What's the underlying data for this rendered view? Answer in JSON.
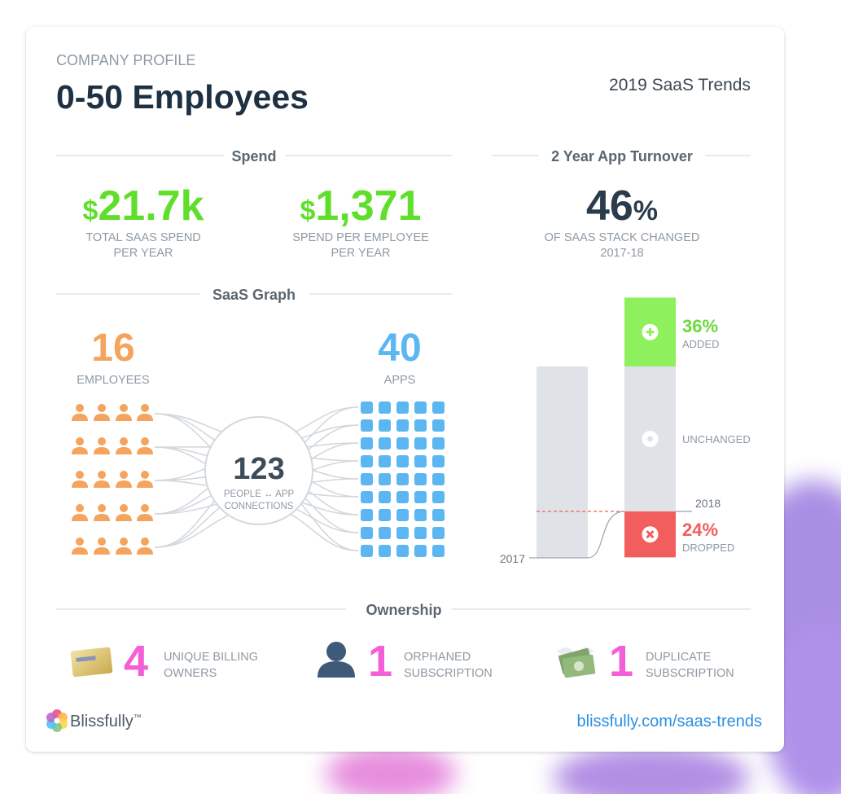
{
  "header": {
    "eyebrow": "COMPANY PROFILE",
    "title": "0-50 Employees",
    "tagline": "2019 SaaS Trends"
  },
  "spend": {
    "heading": "Spend",
    "stats": [
      {
        "symbol": "$",
        "value": "21.7k",
        "label": [
          "TOTAL SAAS SPEND",
          "PER YEAR"
        ]
      },
      {
        "symbol": "$",
        "value": "1,371",
        "label": [
          "SPEND PER EMPLOYEE",
          "PER YEAR"
        ]
      }
    ]
  },
  "turnover": {
    "heading": "2 Year App Turnover",
    "value": "46",
    "unit": "%",
    "label": [
      "OF SAAS STACK CHANGED",
      "2017-18"
    ],
    "start_year": "2017",
    "end_year": "2018",
    "added": {
      "value": 36,
      "label": "36%",
      "caption": "ADDED"
    },
    "unchanged": {
      "caption": "UNCHANGED"
    },
    "dropped": {
      "value": 24,
      "label": "24%",
      "caption": "DROPPED"
    }
  },
  "saas_graph": {
    "heading": "SaaS Graph",
    "employees": {
      "value": "16",
      "label": "EMPLOYEES"
    },
    "apps": {
      "value": "40",
      "label": "APPS"
    },
    "connections": {
      "value": "123",
      "label": [
        "PEOPLE ↔ APP",
        "CONNECTIONS"
      ]
    }
  },
  "ownership": {
    "heading": "Ownership",
    "items": [
      {
        "value": "4",
        "label": [
          "UNIQUE BILLING",
          "OWNERS"
        ]
      },
      {
        "value": "1",
        "label": [
          "ORPHANED",
          "SUBSCRIPTION"
        ]
      },
      {
        "value": "1",
        "label": [
          "DUPLICATE",
          "SUBSCRIPTION"
        ]
      }
    ]
  },
  "footer": {
    "brand": "Blissfully",
    "trademark": "™",
    "link": "blissfully.com/saas-trends"
  }
}
